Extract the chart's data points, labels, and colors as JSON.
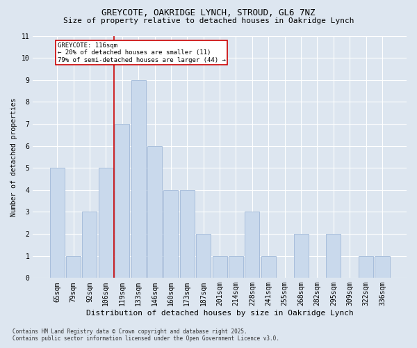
{
  "title1": "GREYCOTE, OAKRIDGE LYNCH, STROUD, GL6 7NZ",
  "title2": "Size of property relative to detached houses in Oakridge Lynch",
  "xlabel": "Distribution of detached houses by size in Oakridge Lynch",
  "ylabel": "Number of detached properties",
  "categories": [
    "65sqm",
    "79sqm",
    "92sqm",
    "106sqm",
    "119sqm",
    "133sqm",
    "146sqm",
    "160sqm",
    "173sqm",
    "187sqm",
    "201sqm",
    "214sqm",
    "228sqm",
    "241sqm",
    "255sqm",
    "268sqm",
    "282sqm",
    "295sqm",
    "309sqm",
    "322sqm",
    "336sqm"
  ],
  "values": [
    5,
    1,
    3,
    5,
    7,
    9,
    6,
    4,
    4,
    2,
    1,
    1,
    3,
    1,
    0,
    2,
    0,
    2,
    0,
    1,
    1
  ],
  "bar_color": "#c9d9ec",
  "bar_edge_color": "#a0b8d8",
  "red_line_index": 4,
  "annotation_title": "GREYCOTE: 116sqm",
  "annotation_line1": "← 20% of detached houses are smaller (11)",
  "annotation_line2": "79% of semi-detached houses are larger (44) →",
  "annotation_box_color": "#ffffff",
  "annotation_border_color": "#cc0000",
  "red_line_color": "#cc0000",
  "footer1": "Contains HM Land Registry data © Crown copyright and database right 2025.",
  "footer2": "Contains public sector information licensed under the Open Government Licence v3.0.",
  "background_color": "#dde6f0",
  "plot_background_color": "#dde6f0",
  "ylim": [
    0,
    11
  ],
  "yticks": [
    0,
    1,
    2,
    3,
    4,
    5,
    6,
    7,
    8,
    9,
    10,
    11
  ],
  "title1_fontsize": 9,
  "title2_fontsize": 8,
  "xlabel_fontsize": 8,
  "ylabel_fontsize": 7,
  "tick_fontsize": 7,
  "annotation_fontsize": 6.5,
  "footer_fontsize": 5.5
}
